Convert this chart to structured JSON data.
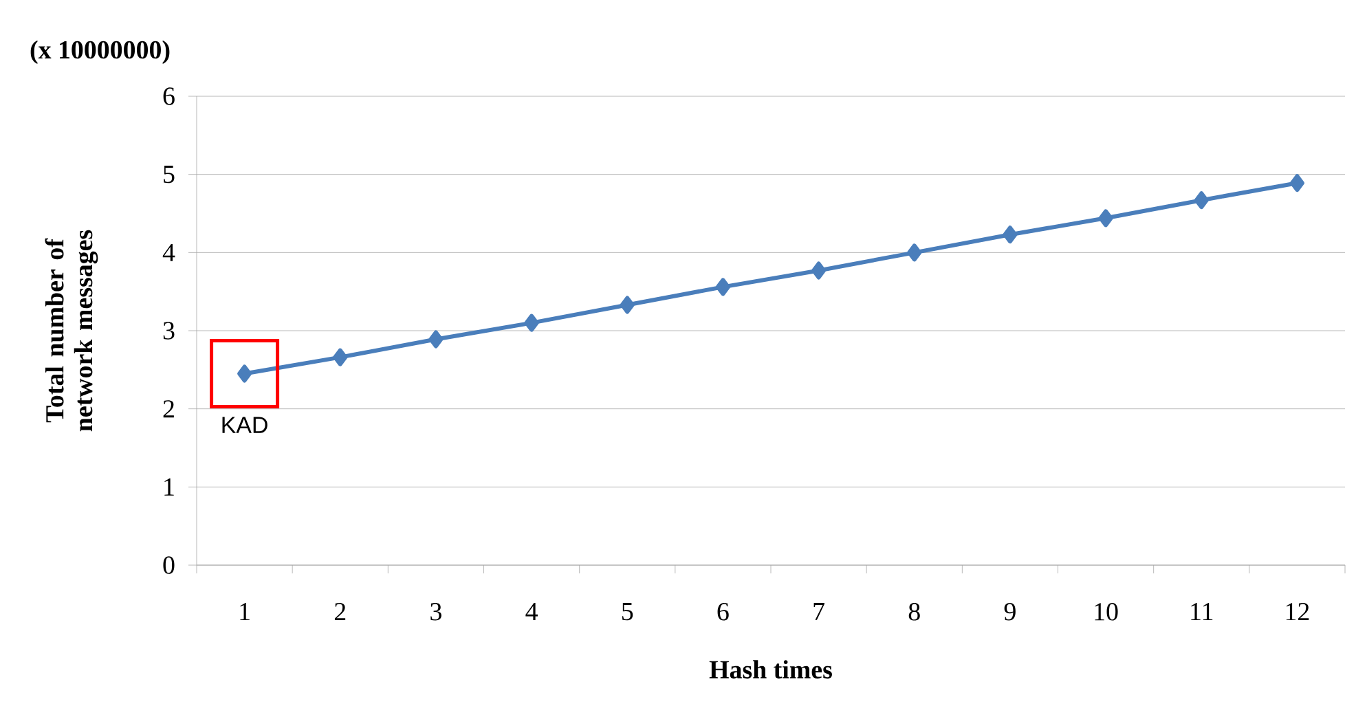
{
  "chart_data": {
    "type": "line",
    "xlabel": "Hash times",
    "ylabel": "Total number of network messages",
    "categories": [
      "1",
      "2",
      "3",
      "4",
      "5",
      "6",
      "7",
      "8",
      "9",
      "10",
      "11",
      "12"
    ],
    "series": [
      {
        "color": "#4a7ebb",
        "values": [
          2.45,
          2.66,
          2.89,
          3.1,
          3.33,
          3.56,
          3.77,
          4.0,
          4.23,
          4.44,
          4.67,
          4.89
        ]
      }
    ],
    "ylim": [
      0,
      6
    ],
    "yticks": [
      0,
      1,
      2,
      3,
      4,
      5,
      6
    ],
    "grid": "y",
    "marker": "diamond",
    "line_style": "solid",
    "annotations": [
      "(x 10000000)",
      {
        "text": "KAD",
        "x": "1",
        "y": 2.45
      }
    ]
  }
}
